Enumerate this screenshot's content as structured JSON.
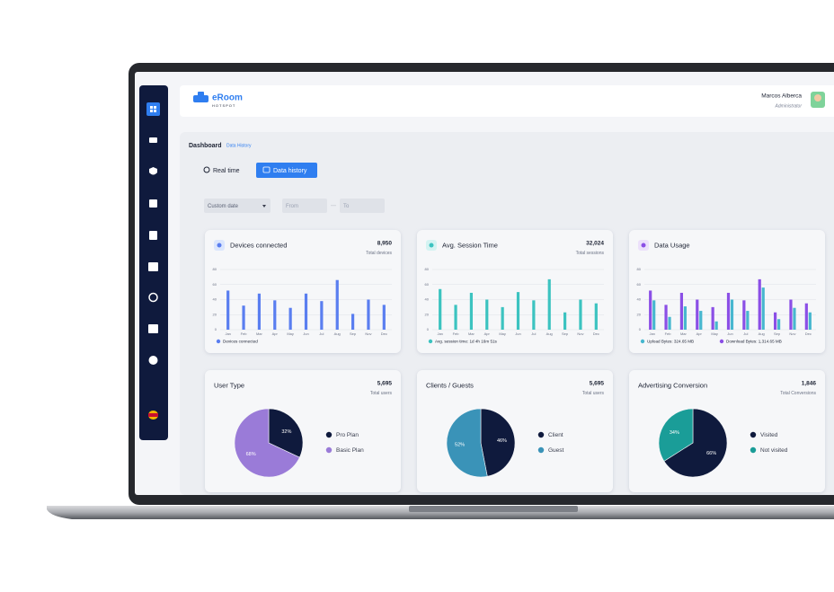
{
  "header": {
    "brand": "eRoom",
    "brand_tagline": "HOTSPOT",
    "user_name": "Marcos Alberca",
    "user_role": "Administrator"
  },
  "breadcrumb": {
    "root": "Dashboard",
    "current": "Data History"
  },
  "tabs": [
    "Real time",
    "Data history"
  ],
  "filters": {
    "range": "Custom date",
    "from": "From",
    "separator": "···",
    "to": "To"
  },
  "chart_data": [
    {
      "type": "bar",
      "title": "Devices connected",
      "total": "8,950",
      "total_label": "Total devices",
      "categories": [
        "Jan",
        "Feb",
        "Mar",
        "Apr",
        "May",
        "Jun",
        "Jul",
        "Aug",
        "Sep",
        "Nov",
        "Dec"
      ],
      "series": [
        {
          "name": "Devices connected",
          "color": "#5a7ef0",
          "values": [
            52,
            32,
            48,
            39,
            29,
            48,
            38,
            66,
            21,
            40,
            33
          ]
        }
      ],
      "ylim": [
        0,
        80
      ],
      "yticks": [
        0,
        20,
        40,
        60,
        80
      ],
      "grid": true
    },
    {
      "type": "bar",
      "title": "Avg. Session Time",
      "total": "32,024",
      "total_label": "Total sessions",
      "categories": [
        "Jan",
        "Feb",
        "Mar",
        "Apr",
        "May",
        "Jun",
        "Jul",
        "Aug",
        "Sep",
        "Nov",
        "Dec"
      ],
      "series": [
        {
          "name": "Avg. session time: 1d 4h 16m 51s",
          "color": "#3cc3c0",
          "values": [
            54,
            33,
            49,
            40,
            30,
            50,
            39,
            67,
            23,
            40,
            35
          ]
        }
      ],
      "ylim": [
        0,
        80
      ],
      "yticks": [
        0,
        20,
        40,
        60,
        80
      ],
      "grid": true
    },
    {
      "type": "bar",
      "title": "Data Usage",
      "total": null,
      "total_label": null,
      "categories": [
        "Jan",
        "Feb",
        "Mar",
        "Apr",
        "May",
        "Jun",
        "Jul",
        "Aug",
        "Sep",
        "Nov",
        "Dec"
      ],
      "series": [
        {
          "name": "Upload Bytes: 324.65 MB",
          "color": "#47b7cf",
          "values": [
            39,
            17,
            31,
            25,
            11,
            40,
            25,
            56,
            14,
            29,
            23
          ]
        },
        {
          "name": "Download Bytes: 1,314.65 MB",
          "color": "#8b4fe6",
          "values": [
            52,
            33,
            49,
            40,
            30,
            49,
            39,
            67,
            23,
            40,
            35
          ]
        }
      ],
      "ylim": [
        0,
        80
      ],
      "yticks": [
        0,
        20,
        40,
        60,
        80
      ],
      "grid": true
    },
    {
      "type": "pie",
      "title": "User Type",
      "total": "5,695",
      "total_label": "Total users",
      "categories": [
        "Pro Plan",
        "Basic Plan"
      ],
      "values": [
        32,
        68
      ],
      "value_labels": [
        "32%",
        "68%"
      ],
      "colors": [
        "#0f1a3d",
        "#9a7bd8"
      ]
    },
    {
      "type": "pie",
      "title": "Clients / Guests",
      "total": "5,695",
      "total_label": "Total users",
      "categories": [
        "Client",
        "Guest"
      ],
      "values": [
        46,
        52
      ],
      "value_labels": [
        "46%",
        "52%"
      ],
      "colors": [
        "#0f1a3d",
        "#3a93b8"
      ]
    },
    {
      "type": "pie",
      "title": "Advertising Conversion",
      "total": "1,846",
      "total_label": "Total Conversions",
      "categories": [
        "Visited",
        "Not visited"
      ],
      "values": [
        66,
        34
      ],
      "value_labels": [
        "66%",
        "34%"
      ],
      "colors": [
        "#0f1a3d",
        "#1a9d98"
      ]
    }
  ]
}
